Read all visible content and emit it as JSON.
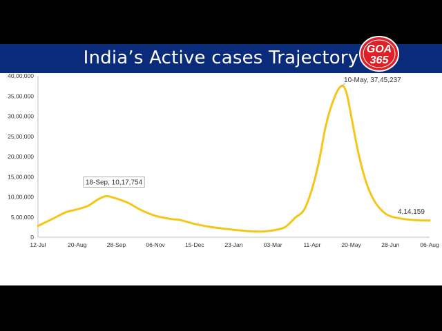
{
  "header": {
    "title": "India’s Active cases Trajectory",
    "logo_text_top": "GOA",
    "logo_text_bottom": "365"
  },
  "colors": {
    "title_bar": "#0a2a7a",
    "line": "#f5c518",
    "logo_red": "#e01f26",
    "background": "#ffffff"
  },
  "chart_data": {
    "type": "line",
    "title": "India’s Active cases Trajectory",
    "xlabel": "",
    "ylabel": "",
    "ylim": [
      0,
      4000000
    ],
    "grid": false,
    "legend": "none",
    "x_ticks": [
      "12-Jul",
      "20-Aug",
      "28-Sep",
      "06-Nov",
      "15-Dec",
      "23-Jan",
      "03-Mar",
      "11-Apr",
      "20-May",
      "28-Jun",
      "06-Aug"
    ],
    "y_ticks": [
      {
        "value": 0,
        "label": "0"
      },
      {
        "value": 500000,
        "label": "5,00,000"
      },
      {
        "value": 1000000,
        "label": "10,00,000"
      },
      {
        "value": 1500000,
        "label": "15,00,000"
      },
      {
        "value": 2000000,
        "label": "20,00,000"
      },
      {
        "value": 2500000,
        "label": "25,00,000"
      },
      {
        "value": 3000000,
        "label": "30,00,000"
      },
      {
        "value": 3500000,
        "label": "35,00,000"
      },
      {
        "value": 4000000,
        "label": "40,00,000"
      }
    ],
    "series": [
      {
        "values": [
          {
            "x": "12-Jul",
            "y": 280000
          },
          {
            "x": "26-Jul",
            "y": 450000
          },
          {
            "x": "09-Aug",
            "y": 620000
          },
          {
            "x": "20-Aug",
            "y": 690000
          },
          {
            "x": "31-Aug",
            "y": 780000
          },
          {
            "x": "10-Sep",
            "y": 940000
          },
          {
            "x": "18-Sep",
            "y": 1017754
          },
          {
            "x": "28-Sep",
            "y": 960000
          },
          {
            "x": "10-Oct",
            "y": 850000
          },
          {
            "x": "22-Oct",
            "y": 680000
          },
          {
            "x": "06-Nov",
            "y": 530000
          },
          {
            "x": "22-Nov",
            "y": 450000
          },
          {
            "x": "30-Nov",
            "y": 430000
          },
          {
            "x": "15-Dec",
            "y": 330000
          },
          {
            "x": "01-Jan",
            "y": 250000
          },
          {
            "x": "23-Jan",
            "y": 185000
          },
          {
            "x": "10-Feb",
            "y": 145000
          },
          {
            "x": "20-Feb",
            "y": 140000
          },
          {
            "x": "03-Mar",
            "y": 170000
          },
          {
            "x": "15-Mar",
            "y": 250000
          },
          {
            "x": "25-Mar",
            "y": 480000
          },
          {
            "x": "03-Apr",
            "y": 680000
          },
          {
            "x": "11-Apr",
            "y": 1200000
          },
          {
            "x": "18-Apr",
            "y": 1900000
          },
          {
            "x": "25-Apr",
            "y": 2800000
          },
          {
            "x": "03-May",
            "y": 3450000
          },
          {
            "x": "10-May",
            "y": 3745237
          },
          {
            "x": "15-May",
            "y": 3600000
          },
          {
            "x": "20-May",
            "y": 3000000
          },
          {
            "x": "27-May",
            "y": 2100000
          },
          {
            "x": "04-Jun",
            "y": 1350000
          },
          {
            "x": "12-Jun",
            "y": 900000
          },
          {
            "x": "20-Jun",
            "y": 650000
          },
          {
            "x": "28-Jun",
            "y": 520000
          },
          {
            "x": "12-Jul",
            "y": 450000
          },
          {
            "x": "25-Jul",
            "y": 420000
          },
          {
            "x": "06-Aug",
            "y": 414159
          }
        ]
      }
    ],
    "annotations": [
      {
        "x": "18-Sep",
        "y": 1017754,
        "text": "18-Sep, 10,17,754"
      },
      {
        "x": "10-May",
        "y": 3745237,
        "text": "10-May, 37,45,237"
      },
      {
        "x": "06-Aug",
        "y": 414159,
        "text": "4,14,159"
      }
    ]
  }
}
